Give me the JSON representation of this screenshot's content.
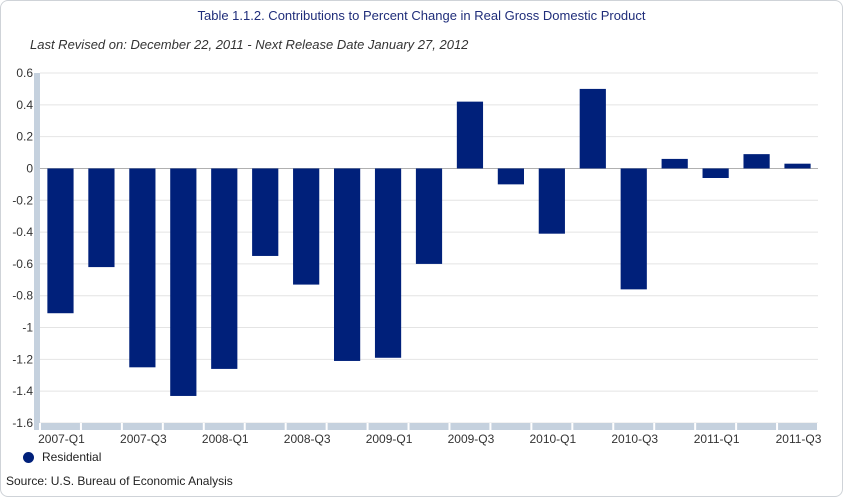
{
  "header": {
    "title": "Table 1.1.2. Contributions to Percent Change in Real Gross Domestic Product",
    "subtitle": "Last Revised on: December 22, 2011 - Next Release Date January 27, 2012"
  },
  "legend": {
    "label": "Residential",
    "color": "#00207a"
  },
  "source": "Source: U.S. Bureau of Economic Analysis",
  "colors": {
    "bar": "#00207a",
    "axis_band": "#c5d1de",
    "grid": "#e4e4e4"
  },
  "chart_data": {
    "type": "bar",
    "categories": [
      "2007-Q1",
      "2007-Q2",
      "2007-Q3",
      "2007-Q4",
      "2008-Q1",
      "2008-Q2",
      "2008-Q3",
      "2008-Q4",
      "2009-Q1",
      "2009-Q2",
      "2009-Q3",
      "2009-Q4",
      "2010-Q1",
      "2010-Q2",
      "2010-Q3",
      "2010-Q4",
      "2011-Q1",
      "2011-Q2",
      "2011-Q3"
    ],
    "series": [
      {
        "name": "Residential",
        "values": [
          -0.91,
          -0.62,
          -1.25,
          -1.43,
          -1.26,
          -0.55,
          -0.73,
          -1.21,
          -1.19,
          -0.6,
          0.42,
          -0.1,
          -0.41,
          0.5,
          -0.76,
          0.06,
          -0.06,
          0.09,
          0.03
        ]
      }
    ],
    "x_tick_labels": [
      "2007-Q1",
      "2007-Q3",
      "2008-Q1",
      "2008-Q3",
      "2009-Q1",
      "2009-Q3",
      "2010-Q1",
      "2010-Q3",
      "2011-Q1",
      "2011-Q3"
    ],
    "y_ticks": [
      "0.6",
      "0.4",
      "0.2",
      "0",
      "-0.2",
      "-0.4",
      "-0.6",
      "-0.8",
      "-1",
      "-1.2",
      "-1.4",
      "-1.6"
    ],
    "ylim": [
      -1.6,
      0.6
    ],
    "grid": true,
    "legend_position": "bottom-left"
  }
}
